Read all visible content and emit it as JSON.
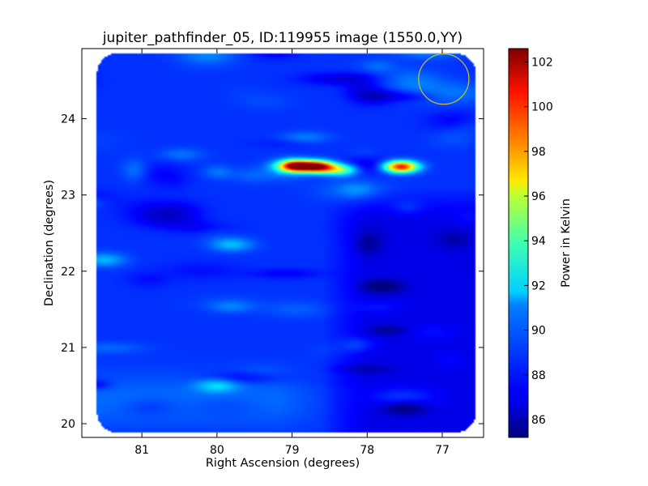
{
  "chart_data": {
    "type": "heatmap",
    "title": "jupiter_pathfinder_05, ID:119955 image (1550.0,YY)",
    "xlabel": "Right Ascension (degrees)",
    "ylabel": "Declination (degrees)",
    "xlim": [
      81.8,
      76.45
    ],
    "ylim": [
      19.82,
      24.92
    ],
    "xticks": [
      81,
      80,
      79,
      78,
      77
    ],
    "yticks": [
      20,
      21,
      22,
      23,
      24
    ],
    "colorbar": {
      "label": "Power in Kelvin",
      "range": [
        85.2,
        102.6
      ],
      "ticks": [
        86,
        88,
        90,
        92,
        94,
        96,
        98,
        100,
        102
      ],
      "colormap": "jet"
    },
    "background_level": 88.2,
    "features": [
      {
        "ra": 78.95,
        "dec": 23.38,
        "peak": 102.6
      },
      {
        "ra": 78.65,
        "dec": 23.37,
        "peak": 101.8
      },
      {
        "ra": 78.35,
        "dec": 23.33,
        "peak": 94.0
      },
      {
        "ra": 77.55,
        "dec": 23.37,
        "peak": 100.5
      },
      {
        "ra": 81.5,
        "dec": 22.15,
        "peak": 90.5
      },
      {
        "ra": 80.0,
        "dec": 20.5,
        "peak": 90.6
      },
      {
        "ra": 79.8,
        "dec": 22.35,
        "peak": 90.6
      },
      {
        "ra": 77.8,
        "dec": 21.8,
        "peak": 86.0
      },
      {
        "ra": 77.5,
        "dec": 20.2,
        "peak": 86.2
      }
    ],
    "beam_circle": {
      "ra": 76.98,
      "dec": 24.52,
      "radius_deg": 0.33,
      "color": "#c8b43c"
    }
  }
}
